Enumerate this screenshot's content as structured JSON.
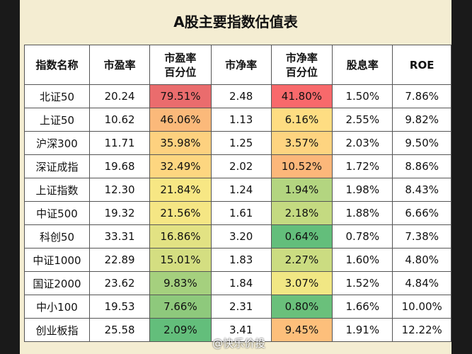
{
  "title": "A股主要指数估值表",
  "table": {
    "headers": [
      "指数名称",
      "市盈率",
      "市盈率\n百分位",
      "市净率",
      "市净率\n百分位",
      "股息率",
      "ROE"
    ],
    "rows": [
      [
        "北证50",
        "20.24",
        "79.51%",
        "2.48",
        "41.80%",
        "1.50%",
        "7.86%"
      ],
      [
        "上证50",
        "10.62",
        "46.06%",
        "1.13",
        "6.16%",
        "2.55%",
        "9.82%"
      ],
      [
        "沪深300",
        "11.71",
        "35.98%",
        "1.25",
        "3.57%",
        "2.03%",
        "9.50%"
      ],
      [
        "深证成指",
        "19.68",
        "32.49%",
        "2.02",
        "10.52%",
        "1.72%",
        "8.86%"
      ],
      [
        "上证指数",
        "12.30",
        "21.84%",
        "1.24",
        "1.94%",
        "1.98%",
        "8.43%"
      ],
      [
        "中证500",
        "19.32",
        "21.56%",
        "1.61",
        "2.18%",
        "1.88%",
        "6.66%"
      ],
      [
        "科创50",
        "33.31",
        "16.86%",
        "3.20",
        "0.64%",
        "0.78%",
        "7.38%"
      ],
      [
        "中证1000",
        "22.89",
        "15.01%",
        "1.83",
        "2.27%",
        "1.60%",
        "4.80%"
      ],
      [
        "国证2000",
        "23.62",
        "9.83%",
        "1.84",
        "3.07%",
        "1.52%",
        "4.84%"
      ],
      [
        "中小100",
        "19.53",
        "7.66%",
        "2.31",
        "0.80%",
        "1.66%",
        "10.00%"
      ],
      [
        "创业板指",
        "25.58",
        "2.09%",
        "3.41",
        "9.45%",
        "1.91%",
        "12.22%"
      ]
    ],
    "pe_percentile_colors": [
      "#ea6c6d",
      "#fbb97a",
      "#fdd17f",
      "#fdd680",
      "#f7e784",
      "#f5e684",
      "#e2e283",
      "#d4de81",
      "#a5d07e",
      "#8ec97c",
      "#63be7b"
    ],
    "pb_percentile_colors": [
      "#f8696b",
      "#fedd82",
      "#fed480",
      "#fcb77a",
      "#b3d580",
      "#c4da81",
      "#63be7b",
      "#cbdc81",
      "#f1e784",
      "#6ac07b",
      "#fdbf7b"
    ]
  },
  "watermark": "@快乐价投"
}
